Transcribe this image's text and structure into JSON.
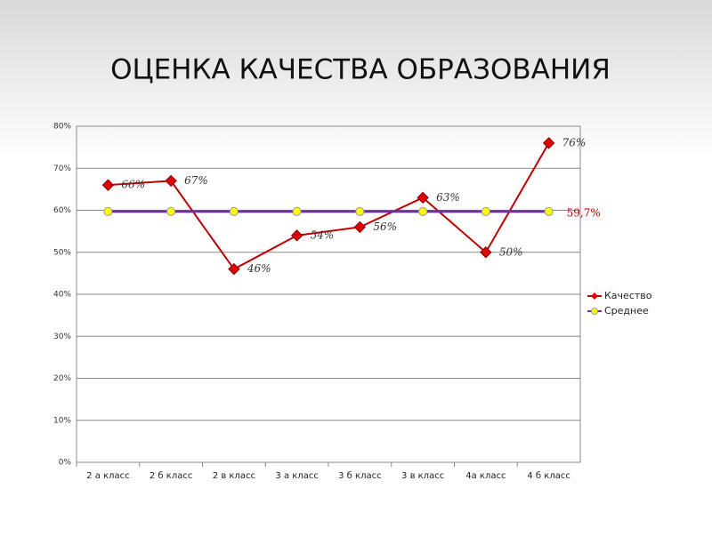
{
  "chart_data": {
    "type": "line",
    "title": "ОЦЕНКА КАЧЕСТВА ОБРАЗОВАНИЯ",
    "categories": [
      "2 а класс",
      "2 б класс",
      "2 в класс",
      "3 а класс",
      "3 б класс",
      "3 в класс",
      "4а класс",
      "4 б класс"
    ],
    "series": [
      {
        "name": "Качество",
        "color": "#c00000",
        "marker_color": "#e00000",
        "marker": "diamond",
        "values": [
          66,
          67,
          46,
          54,
          56,
          63,
          50,
          76
        ],
        "value_labels": [
          "66%",
          "67%",
          "46%",
          "54%",
          "56%",
          "63%",
          "50%",
          "76%"
        ]
      },
      {
        "name": "Среднее",
        "color": "#7030a0",
        "marker_color": "#ffff00",
        "marker": "circle",
        "values": [
          59.7,
          59.7,
          59.7,
          59.7,
          59.7,
          59.7,
          59.7,
          59.7
        ],
        "value_labels": [
          null,
          null,
          null,
          null,
          null,
          null,
          null,
          "59,7%"
        ]
      }
    ],
    "ylim": [
      0,
      80
    ],
    "yticks": [
      {
        "value": 0,
        "label": "0%"
      },
      {
        "value": 10,
        "label": "10%"
      },
      {
        "value": 20,
        "label": "20%"
      },
      {
        "value": 30,
        "label": "30%"
      },
      {
        "value": 40,
        "label": "40%"
      },
      {
        "value": 50,
        "label": "50%"
      },
      {
        "value": 60,
        "label": "60%"
      },
      {
        "value": 70,
        "label": "70%"
      },
      {
        "value": 80,
        "label": "80%"
      }
    ],
    "grid": true,
    "legend": "right"
  }
}
